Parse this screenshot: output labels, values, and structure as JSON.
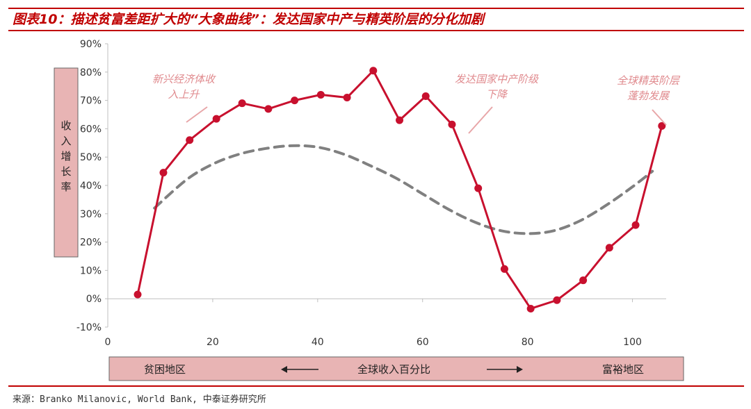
{
  "title": "图表10：描述贫富差距扩大的“大象曲线”：发达国家中产与精英阶层的分化加剧",
  "source": "来源：Branko Milanovic, World Bank, 中泰证券研究所",
  "colors": {
    "accent": "#c00000",
    "series": "#c8102e",
    "dashed": "#808080",
    "panel": "#e8b4b4",
    "annotation": "#e08a8e"
  },
  "y_axis_label": "收入增长率",
  "bottom_band": {
    "left": "贫困地区",
    "center": "全球收入百分比",
    "right": "富裕地区"
  },
  "annotations": [
    {
      "lines": [
        "新兴经济体收",
        "入上升"
      ]
    },
    {
      "lines": [
        "发达国家中产阶级",
        "下降"
      ]
    },
    {
      "lines": [
        "全球精英阶层",
        "蓬勃发展"
      ]
    }
  ],
  "chart_data": {
    "type": "line",
    "title": "",
    "xlabel": "全球收入百分比",
    "ylabel": "收入增长率",
    "xlim": [
      0,
      110
    ],
    "ylim": [
      -10,
      90
    ],
    "x_ticks": [
      0,
      20,
      40,
      60,
      80,
      100
    ],
    "y_ticks": [
      -10,
      0,
      10,
      20,
      30,
      40,
      50,
      60,
      70,
      80,
      90
    ],
    "y_tick_labels": [
      "-10%",
      "0%",
      "10%",
      "20%",
      "30%",
      "40%",
      "50%",
      "60%",
      "70%",
      "80%",
      "90%"
    ],
    "grid": false,
    "series": [
      {
        "style": "solid-markers",
        "x": [
          5.7,
          10.6,
          15.6,
          20.7,
          25.6,
          30.6,
          35.6,
          40.6,
          45.6,
          50.6,
          55.6,
          60.6,
          65.6,
          70.6,
          75.6,
          80.6,
          85.6,
          90.6,
          95.6,
          100.6,
          105.6
        ],
        "values": [
          1.5,
          44.5,
          56,
          63.5,
          69,
          67,
          70,
          72,
          71,
          80.5,
          63,
          71.5,
          61.5,
          39,
          10.5,
          -3.5,
          -0.5,
          6.5,
          18,
          26,
          61
        ]
      },
      {
        "style": "dashed-trend",
        "x": [
          8.9,
          15,
          20,
          25,
          30,
          35,
          40,
          45,
          50,
          55,
          60,
          65,
          70,
          75,
          80,
          85,
          90,
          95,
          100,
          103.8
        ],
        "values": [
          32,
          42,
          47.5,
          51,
          53,
          54,
          53.5,
          51,
          47,
          42.5,
          37,
          31.5,
          27,
          24,
          23,
          24,
          27.5,
          33,
          39.5,
          45
        ]
      }
    ]
  }
}
